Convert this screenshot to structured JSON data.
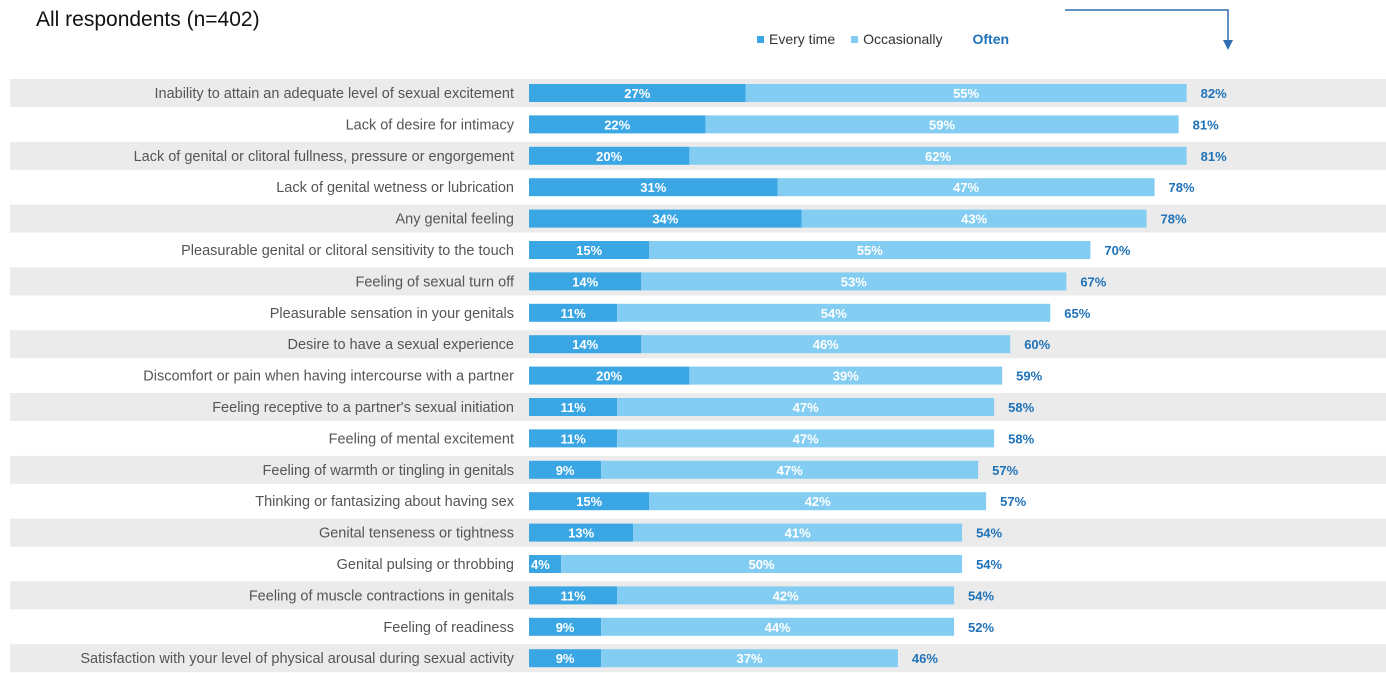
{
  "header": {
    "title": "All respondents (n=402)"
  },
  "colors": {
    "every_time": "#3aa6e4",
    "occasionally": "#84cdf2",
    "total": "#1f72b8",
    "row_band": "#ebebeb"
  },
  "chart_data": {
    "type": "bar",
    "orientation": "horizontal",
    "stacked": true,
    "legend": {
      "position": "top-right",
      "total_label": "Often"
    },
    "categories": [
      "Inability to attain an adequate level of sexual excitement",
      "Lack of desire for intimacy",
      "Lack of genital or clitoral fullness, pressure or engorgement",
      "Lack of genital wetness or lubrication",
      "Any genital feeling",
      "Pleasurable genital or clitoral sensitivity to the touch",
      "Feeling of sexual turn off",
      "Pleasurable sensation in your genitals",
      "Desire to have a sexual experience",
      "Discomfort or pain when having intercourse with a partner",
      "Feeling receptive to a partner's sexual initiation",
      "Feeling of mental excitement",
      "Feeling of warmth or tingling in genitals",
      "Thinking or fantasizing about having sex",
      "Genital tenseness or tightness",
      "Genital pulsing or throbbing",
      "Feeling of muscle contractions in genitals",
      "Feeling of readiness",
      "Satisfaction with your level of physical arousal during sexual activity"
    ],
    "series": [
      {
        "name": "Every time",
        "values": [
          27,
          22,
          20,
          31,
          34,
          15,
          14,
          11,
          14,
          20,
          11,
          11,
          9,
          15,
          13,
          4,
          11,
          9,
          9
        ]
      },
      {
        "name": "Occasionally",
        "values": [
          55,
          59,
          62,
          47,
          43,
          55,
          53,
          54,
          46,
          39,
          47,
          47,
          47,
          42,
          41,
          50,
          42,
          44,
          37
        ]
      }
    ],
    "totals": [
      82,
      81,
      81,
      78,
      78,
      70,
      67,
      65,
      60,
      59,
      58,
      58,
      57,
      57,
      54,
      54,
      54,
      52,
      46
    ],
    "value_suffix": "%"
  }
}
